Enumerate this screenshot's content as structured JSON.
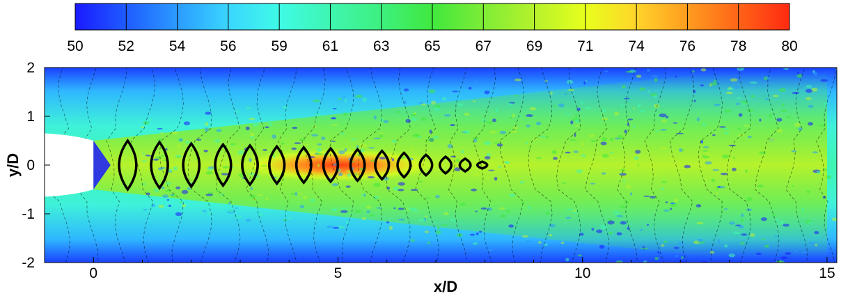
{
  "chart_data": {
    "type": "heatmap",
    "title": "",
    "xlabel": "x/D",
    "ylabel": "y/D",
    "xlim": [
      -1.0,
      15.2
    ],
    "ylim": [
      -2,
      2
    ],
    "x_ticks": [
      "0",
      "5",
      "10",
      "15"
    ],
    "y_ticks": [
      "2",
      "1",
      "0",
      "-1",
      "-2"
    ],
    "colorbar": {
      "levels": [
        "50",
        "52",
        "54",
        "56",
        "59",
        "61",
        "63",
        "65",
        "67",
        "69",
        "71",
        "74",
        "76",
        "78",
        "80"
      ],
      "colors": [
        "#1a1aff",
        "#1f5cff",
        "#2b9bff",
        "#3ad6ff",
        "#3ffbe6",
        "#3ff5b0",
        "#3ef07e",
        "#40e83e",
        "#7eec36",
        "#b6f22c",
        "#e8ff1c",
        "#ffd42a",
        "#ff9c20",
        "#ff6418",
        "#ff2a10"
      ]
    },
    "shock_cells": {
      "x_centers": [
        0.7,
        1.35,
        2.0,
        2.65,
        3.2,
        3.75,
        4.3,
        4.85,
        5.4,
        5.9,
        6.35,
        6.8,
        7.2,
        7.6,
        7.95
      ],
      "half_heights": [
        0.5,
        0.47,
        0.44,
        0.42,
        0.4,
        0.38,
        0.36,
        0.34,
        0.32,
        0.29,
        0.25,
        0.21,
        0.17,
        0.13,
        0.07
      ]
    },
    "nozzle_exit_x": 0
  },
  "colors": {
    "background_field": "#3ee8d2",
    "nozzle": "#ffffff"
  }
}
